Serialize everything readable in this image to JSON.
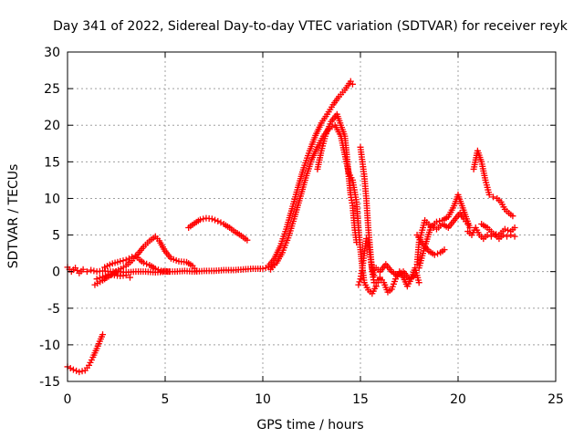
{
  "chart_data": {
    "type": "scatter",
    "title": "Day 341 of 2022, Sidereal Day-to-day VTEC variation (SDTVAR) for receiver reyk",
    "xlabel": "GPS time / hours",
    "ylabel": "SDTVAR / TECUs",
    "xlim": [
      0,
      25
    ],
    "ylim": [
      -15,
      30
    ],
    "xticks": [
      "0",
      "5",
      "10",
      "15",
      "20",
      "25"
    ],
    "yticks": [
      "-15",
      "-10",
      "-5",
      "0",
      "5",
      "10",
      "15",
      "20",
      "25",
      "30"
    ],
    "grid": true,
    "marker": "+",
    "series": [
      {
        "name": "SDTVAR",
        "color": "#ff0000",
        "traces": [
          [
            [
              0.0,
              -13.0
            ],
            [
              0.3,
              -13.4
            ],
            [
              0.6,
              -13.7
            ],
            [
              0.9,
              -13.5
            ],
            [
              1.1,
              -12.8
            ],
            [
              1.3,
              -11.7
            ],
            [
              1.5,
              -10.5
            ],
            [
              1.7,
              -9.2
            ],
            [
              1.8,
              -8.6
            ]
          ],
          [
            [
              0.0,
              0.6
            ],
            [
              0.2,
              0.0
            ],
            [
              0.4,
              0.5
            ],
            [
              0.6,
              -0.2
            ],
            [
              0.8,
              0.3
            ],
            [
              1.0,
              0.0
            ],
            [
              1.2,
              0.2
            ],
            [
              1.5,
              0.0
            ],
            [
              1.8,
              0.1
            ],
            [
              2.2,
              0.0
            ],
            [
              2.6,
              0.0
            ],
            [
              3.0,
              -0.1
            ],
            [
              3.5,
              0.0
            ],
            [
              4.0,
              0.0
            ],
            [
              4.5,
              -0.1
            ],
            [
              5.0,
              0.0
            ],
            [
              5.5,
              0.0
            ],
            [
              6.0,
              0.1
            ],
            [
              6.5,
              0.0
            ],
            [
              7.0,
              0.1
            ],
            [
              7.5,
              0.1
            ],
            [
              8.0,
              0.2
            ],
            [
              8.5,
              0.2
            ],
            [
              9.0,
              0.3
            ],
            [
              9.5,
              0.4
            ],
            [
              10.0,
              0.4
            ],
            [
              10.3,
              0.6
            ],
            [
              10.6,
              1.0
            ]
          ],
          [
            [
              1.4,
              -1.8
            ],
            [
              1.8,
              -1.2
            ],
            [
              2.2,
              -0.5
            ],
            [
              2.6,
              0.2
            ],
            [
              3.0,
              0.8
            ],
            [
              3.3,
              1.5
            ],
            [
              3.6,
              2.4
            ],
            [
              3.9,
              3.4
            ],
            [
              4.2,
              4.2
            ],
            [
              4.5,
              4.8
            ],
            [
              4.7,
              4.2
            ],
            [
              5.0,
              2.8
            ],
            [
              5.3,
              1.8
            ],
            [
              5.7,
              1.4
            ],
            [
              6.1,
              1.3
            ],
            [
              6.4,
              0.8
            ],
            [
              6.6,
              0.1
            ]
          ],
          [
            [
              1.9,
              0.6
            ],
            [
              2.3,
              1.1
            ],
            [
              2.7,
              1.4
            ],
            [
              3.0,
              1.6
            ],
            [
              3.3,
              2.0
            ],
            [
              3.5,
              2.2
            ],
            [
              3.7,
              1.6
            ],
            [
              3.9,
              1.2
            ],
            [
              4.2,
              0.9
            ],
            [
              4.5,
              0.4
            ],
            [
              4.8,
              0.1
            ],
            [
              5.2,
              0.0
            ]
          ],
          [
            [
              1.5,
              -1.0
            ],
            [
              1.8,
              -0.7
            ],
            [
              2.1,
              -0.4
            ],
            [
              2.4,
              -0.5
            ],
            [
              2.7,
              -0.6
            ],
            [
              3.0,
              -0.5
            ],
            [
              3.2,
              -0.8
            ]
          ],
          [
            [
              6.2,
              6.0
            ],
            [
              6.5,
              6.6
            ],
            [
              6.8,
              7.1
            ],
            [
              7.1,
              7.3
            ],
            [
              7.4,
              7.2
            ],
            [
              7.7,
              6.9
            ],
            [
              8.0,
              6.5
            ],
            [
              8.3,
              6.0
            ],
            [
              8.6,
              5.4
            ],
            [
              8.9,
              4.9
            ],
            [
              9.2,
              4.3
            ]
          ],
          [
            [
              10.3,
              0.8
            ],
            [
              10.6,
              1.8
            ],
            [
              10.9,
              3.5
            ],
            [
              11.2,
              5.8
            ],
            [
              11.5,
              8.6
            ],
            [
              11.8,
              11.5
            ],
            [
              12.1,
              14.2
            ],
            [
              12.4,
              16.5
            ],
            [
              12.7,
              18.6
            ],
            [
              13.0,
              20.3
            ],
            [
              13.3,
              21.5
            ],
            [
              13.6,
              22.8
            ],
            [
              13.9,
              23.9
            ],
            [
              14.2,
              24.8
            ],
            [
              14.5,
              26.0
            ],
            [
              14.6,
              25.6
            ]
          ],
          [
            [
              10.4,
              0.3
            ],
            [
              10.7,
              1.2
            ],
            [
              11.0,
              2.6
            ],
            [
              11.3,
              4.6
            ],
            [
              11.6,
              7.2
            ],
            [
              11.9,
              10.0
            ],
            [
              12.2,
              12.8
            ],
            [
              12.5,
              15.3
            ],
            [
              12.8,
              17.0
            ],
            [
              13.1,
              18.5
            ],
            [
              13.4,
              19.6
            ],
            [
              13.7,
              20.0
            ],
            [
              14.0,
              18.5
            ],
            [
              14.2,
              16.0
            ],
            [
              14.4,
              13.5
            ],
            [
              14.6,
              12.5
            ],
            [
              14.8,
              9.5
            ],
            [
              14.9,
              6.0
            ],
            [
              15.0,
              3.0
            ],
            [
              15.1,
              0.5
            ],
            [
              15.2,
              -1.5
            ],
            [
              15.4,
              -2.5
            ],
            [
              15.6,
              -3.0
            ],
            [
              15.8,
              -2.0
            ]
          ],
          [
            [
              12.8,
              14.0
            ],
            [
              13.0,
              16.5
            ],
            [
              13.2,
              18.5
            ],
            [
              13.5,
              20.5
            ],
            [
              13.8,
              21.5
            ],
            [
              14.0,
              20.0
            ],
            [
              14.2,
              18.5
            ],
            [
              14.3,
              16.0
            ],
            [
              14.4,
              13.0
            ],
            [
              14.5,
              10.5
            ],
            [
              14.6,
              9.0
            ],
            [
              14.7,
              6.0
            ],
            [
              14.8,
              4.0
            ]
          ],
          [
            [
              14.9,
              -1.8
            ],
            [
              15.0,
              -1.0
            ],
            [
              15.1,
              0.5
            ],
            [
              15.2,
              2.5
            ],
            [
              15.3,
              4.5
            ],
            [
              15.4,
              4.0
            ],
            [
              15.5,
              2.0
            ],
            [
              15.6,
              0.5
            ],
            [
              15.7,
              -0.5
            ]
          ],
          [
            [
              15.0,
              17.0
            ],
            [
              15.1,
              15.0
            ],
            [
              15.2,
              13.0
            ],
            [
              15.3,
              10.0
            ],
            [
              15.4,
              6.0
            ],
            [
              15.5,
              3.0
            ],
            [
              15.6,
              0.0
            ],
            [
              15.7,
              -1.5
            ],
            [
              15.8,
              -2.0
            ],
            [
              15.9,
              -1.5
            ],
            [
              16.0,
              -1.0
            ]
          ],
          [
            [
              15.8,
              -1.5
            ],
            [
              16.0,
              -0.8
            ],
            [
              16.2,
              -1.5
            ],
            [
              16.4,
              -2.8
            ],
            [
              16.6,
              -2.4
            ],
            [
              16.8,
              -1.0
            ],
            [
              17.0,
              0.0
            ],
            [
              17.2,
              -0.8
            ],
            [
              17.4,
              -2.0
            ],
            [
              17.6,
              -1.0
            ],
            [
              17.8,
              0.5
            ],
            [
              18.0,
              -1.5
            ]
          ],
          [
            [
              15.8,
              0.5
            ],
            [
              16.0,
              0.0
            ],
            [
              16.3,
              1.0
            ],
            [
              16.6,
              0.0
            ],
            [
              16.9,
              -0.5
            ],
            [
              17.2,
              0.0
            ],
            [
              17.5,
              -1.0
            ],
            [
              17.8,
              -0.5
            ]
          ],
          [
            [
              18.0,
              0.5
            ],
            [
              18.3,
              3.5
            ],
            [
              18.6,
              6.0
            ],
            [
              18.9,
              6.8
            ],
            [
              19.2,
              7.0
            ],
            [
              19.5,
              7.5
            ],
            [
              19.8,
              9.0
            ],
            [
              20.0,
              10.5
            ],
            [
              20.2,
              9.0
            ],
            [
              20.4,
              7.5
            ],
            [
              20.6,
              6.0
            ]
          ],
          [
            [
              17.9,
              1.0
            ],
            [
              18.0,
              4.0
            ],
            [
              18.3,
              7.0
            ],
            [
              18.6,
              6.2
            ],
            [
              18.9,
              5.8
            ],
            [
              19.2,
              6.5
            ],
            [
              19.5,
              6.0
            ],
            [
              19.8,
              7.0
            ],
            [
              20.1,
              8.0
            ],
            [
              20.3,
              7.2
            ],
            [
              20.5,
              6.5
            ]
          ],
          [
            [
              17.9,
              5.0
            ],
            [
              18.2,
              3.8
            ],
            [
              18.5,
              2.8
            ],
            [
              18.8,
              2.3
            ],
            [
              19.1,
              2.6
            ],
            [
              19.3,
              3.0
            ]
          ],
          [
            [
              20.8,
              14.0
            ],
            [
              21.0,
              16.5
            ],
            [
              21.2,
              15.0
            ],
            [
              21.4,
              12.5
            ],
            [
              21.6,
              10.5
            ],
            [
              21.8,
              10.2
            ],
            [
              22.0,
              10.0
            ],
            [
              22.2,
              9.5
            ],
            [
              22.4,
              8.5
            ],
            [
              22.6,
              8.0
            ],
            [
              22.8,
              7.6
            ]
          ],
          [
            [
              20.5,
              5.5
            ],
            [
              20.7,
              5.0
            ],
            [
              20.9,
              6.0
            ],
            [
              21.1,
              5.0
            ],
            [
              21.3,
              4.5
            ],
            [
              21.5,
              5.0
            ],
            [
              21.7,
              4.8
            ],
            [
              21.9,
              5.0
            ],
            [
              22.1,
              4.5
            ],
            [
              22.3,
              5.0
            ],
            [
              22.5,
              4.8
            ],
            [
              22.7,
              5.0
            ],
            [
              22.9,
              4.8
            ]
          ],
          [
            [
              21.2,
              6.5
            ],
            [
              21.5,
              6.0
            ],
            [
              21.8,
              5.2
            ],
            [
              22.1,
              5.0
            ],
            [
              22.4,
              5.8
            ],
            [
              22.7,
              5.5
            ],
            [
              22.9,
              6.0
            ]
          ]
        ]
      }
    ]
  }
}
